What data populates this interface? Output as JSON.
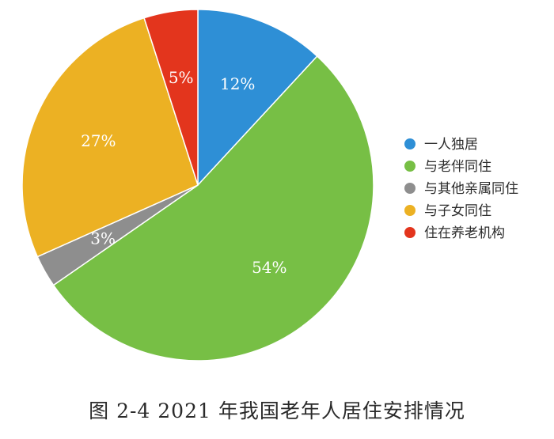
{
  "chart_data": {
    "type": "pie",
    "title": "",
    "caption": "图 2-4 2021 年我国老年人居住安排情况",
    "legend_position": "right",
    "slices": [
      {
        "name": "一人独居",
        "value": 12,
        "label": "12%",
        "color": "#2e8fd6"
      },
      {
        "name": "与老伴同住",
        "value": 54,
        "label": "54%",
        "color": "#77bf45"
      },
      {
        "name": "与其他亲属同住",
        "value": 3,
        "label": "3%",
        "color": "#8e8e8e"
      },
      {
        "name": "与子女同住",
        "value": 27,
        "label": "27%",
        "color": "#ecb123"
      },
      {
        "name": "住在养老机构",
        "value": 5,
        "label": "5%",
        "color": "#e3351d"
      }
    ]
  }
}
